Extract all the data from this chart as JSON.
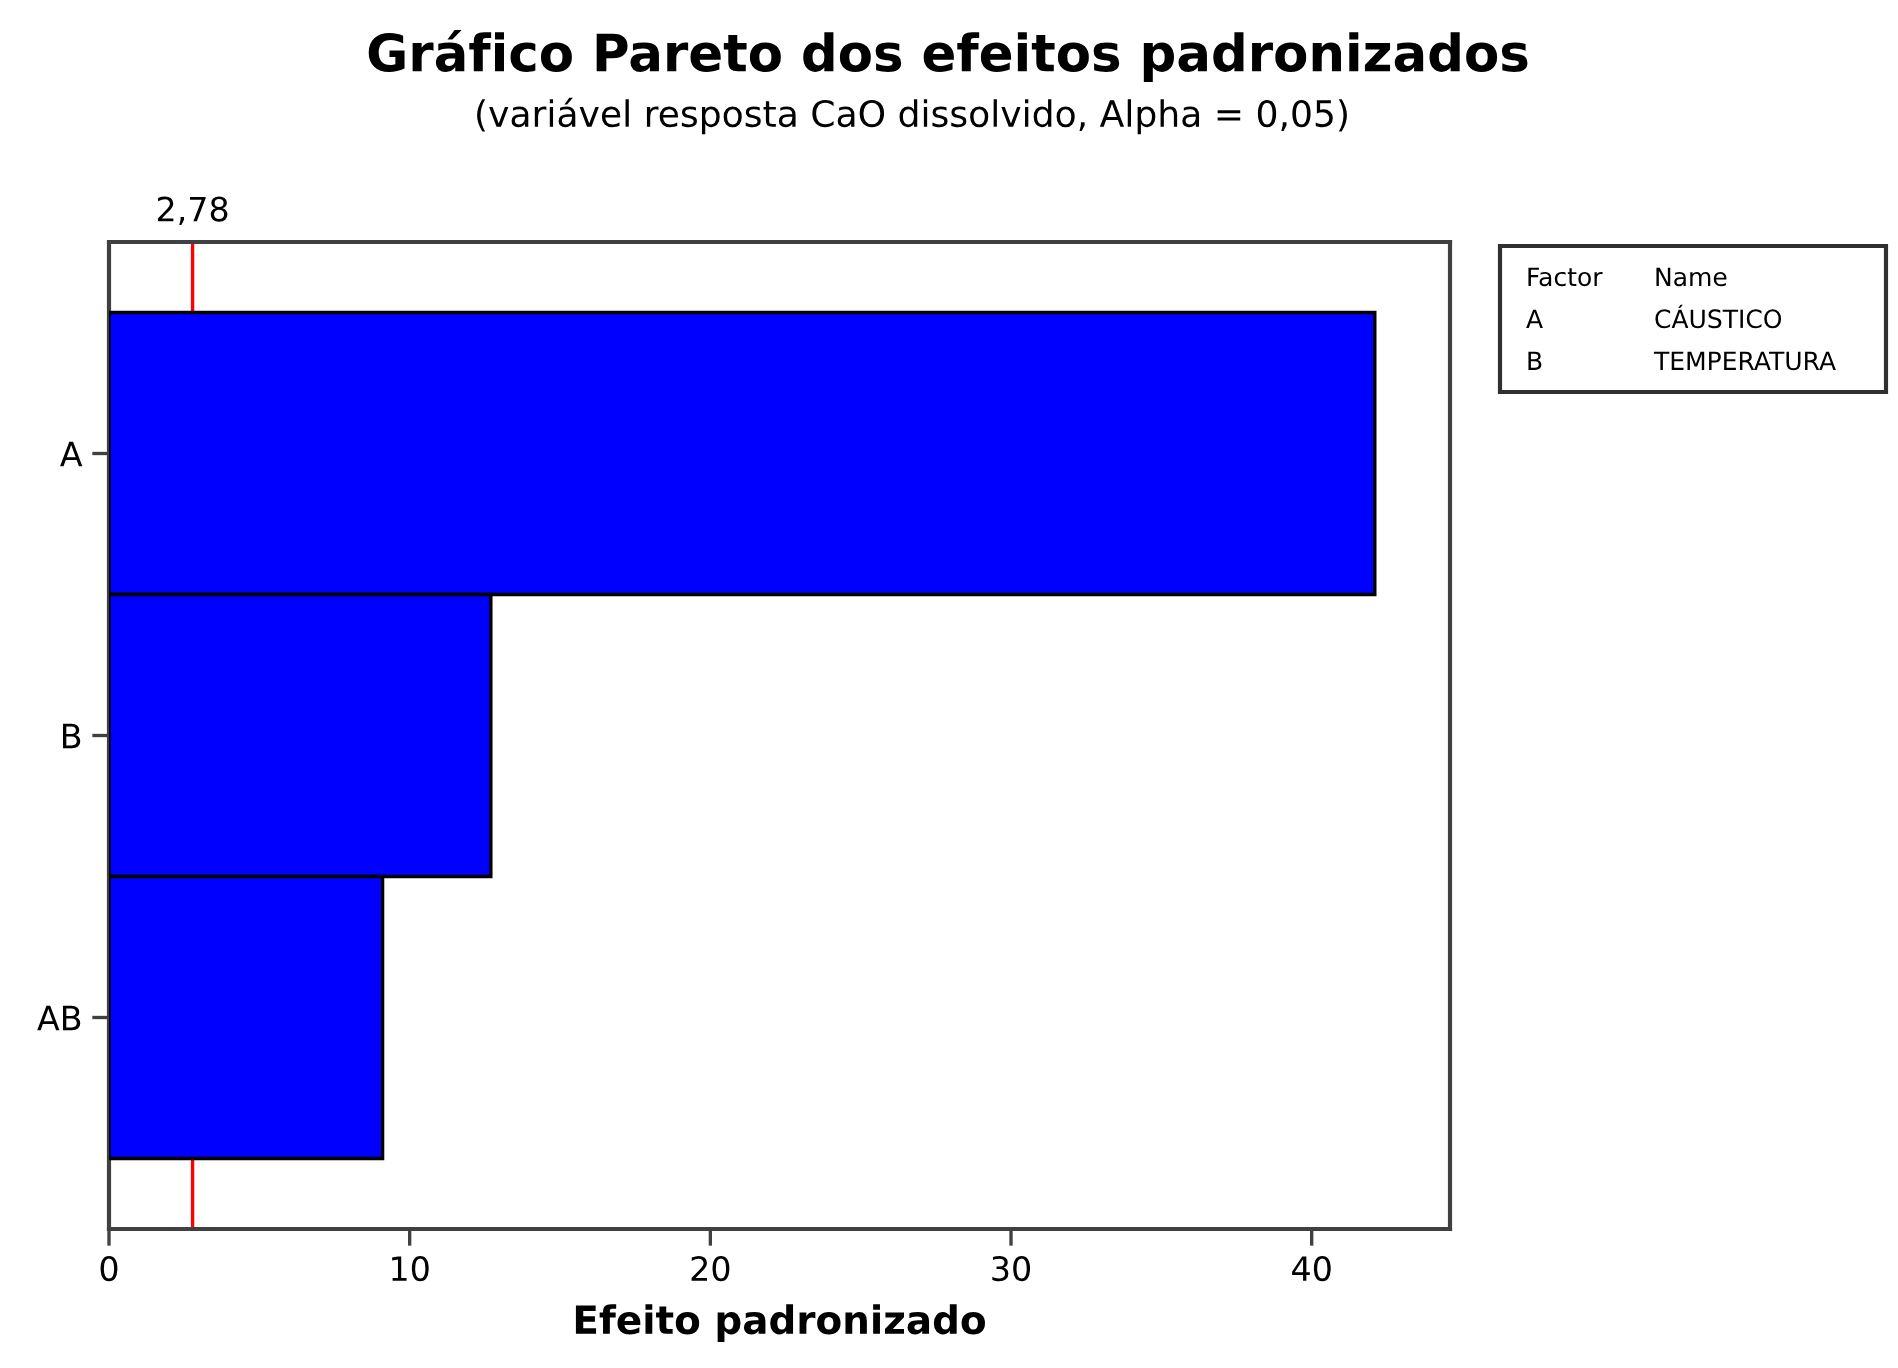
{
  "chart_data": {
    "type": "bar",
    "orientation": "horizontal",
    "title": "Gráfico Pareto dos efeitos padronizados",
    "subtitle": "(variável resposta CaO dissolvido, Alpha = 0,05)",
    "xlabel": "Efeito padronizado",
    "categories": [
      "A",
      "B",
      "AB"
    ],
    "values": [
      42.1,
      12.7,
      9.1
    ],
    "color": "#0000ff",
    "xlim": [
      0,
      44.6
    ],
    "xticks": [
      0,
      10,
      20,
      30,
      40
    ],
    "ref_lines": [
      {
        "axis": "x",
        "value": 2.78,
        "label": "2,78",
        "color": "#ff0000"
      }
    ],
    "annotations": [
      "Factor",
      "Name",
      "A",
      "CÁUSTICO",
      "B",
      "TEMPERATURA"
    ],
    "grid": false
  }
}
